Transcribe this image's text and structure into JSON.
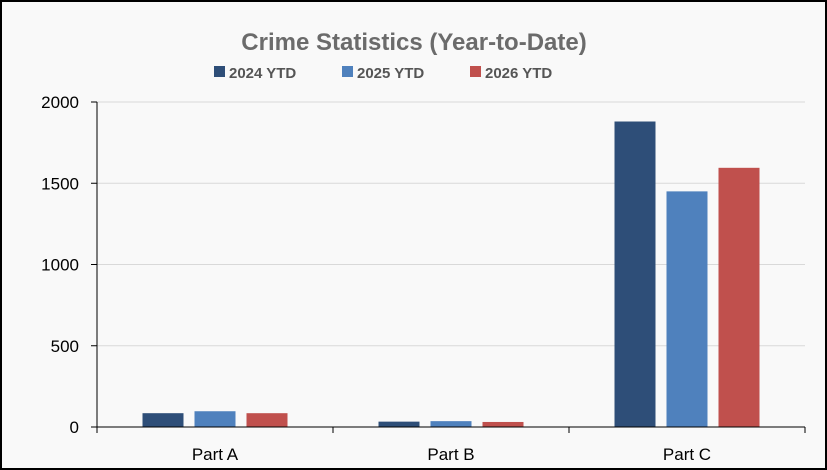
{
  "chart_data": {
    "type": "bar",
    "title": "Crime Statistics (Year-to-Date)",
    "categories": [
      "Part A",
      "Part B",
      "Part C"
    ],
    "series": [
      {
        "name": "2024 YTD",
        "color": "#2e4e78",
        "values": [
          85,
          33,
          1880
        ]
      },
      {
        "name": "2025 YTD",
        "color": "#4f81bd",
        "values": [
          97,
          36,
          1450
        ]
      },
      {
        "name": "2026 YTD",
        "color": "#c0504d",
        "values": [
          85,
          31,
          1595
        ]
      }
    ],
    "yticks": [
      "0",
      "500",
      "1000",
      "1500",
      "2000"
    ],
    "ylim": [
      0,
      2000
    ],
    "grid": true,
    "legend_position": "top-center"
  }
}
